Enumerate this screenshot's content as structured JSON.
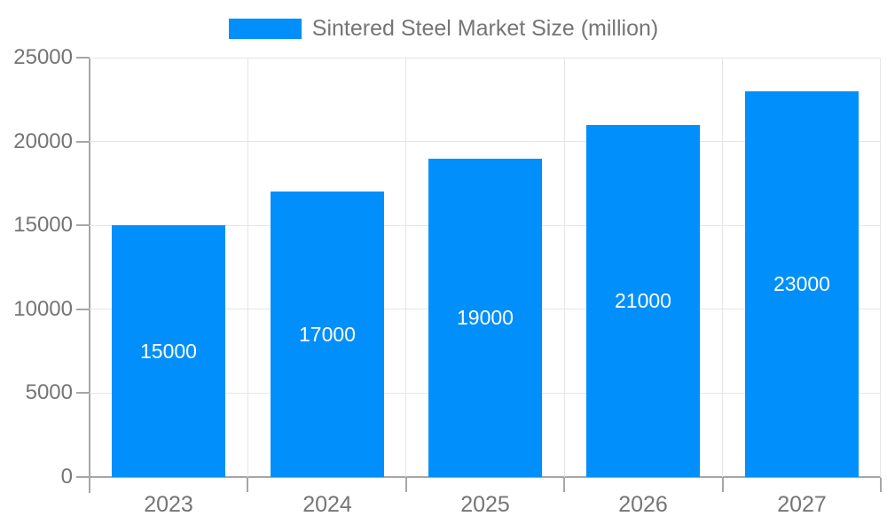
{
  "legend": {
    "label": "Sintered Steel Market Size (million)"
  },
  "chart_data": {
    "type": "bar",
    "title": "",
    "series_name": "Sintered Steel Market Size (million)",
    "categories": [
      "2023",
      "2024",
      "2025",
      "2026",
      "2027"
    ],
    "values": [
      15000,
      17000,
      19000,
      21000,
      23000
    ],
    "bar_labels": [
      "15000",
      "17000",
      "19000",
      "21000",
      "23000"
    ],
    "xlabel": "",
    "ylabel": "",
    "ylim": [
      0,
      25000
    ],
    "yticks": [
      0,
      5000,
      10000,
      15000,
      20000,
      25000
    ],
    "ytick_labels": [
      "0",
      "5000",
      "10000",
      "15000",
      "20000",
      "25000"
    ],
    "grid": true,
    "legend_position": "top"
  },
  "colors": {
    "bar": "#008ffb",
    "axis": "#a6a6a6",
    "grid": "#e6e6e6",
    "tick_text": "#757575",
    "bar_label_text": "#ffffff",
    "background": "#ffffff"
  }
}
